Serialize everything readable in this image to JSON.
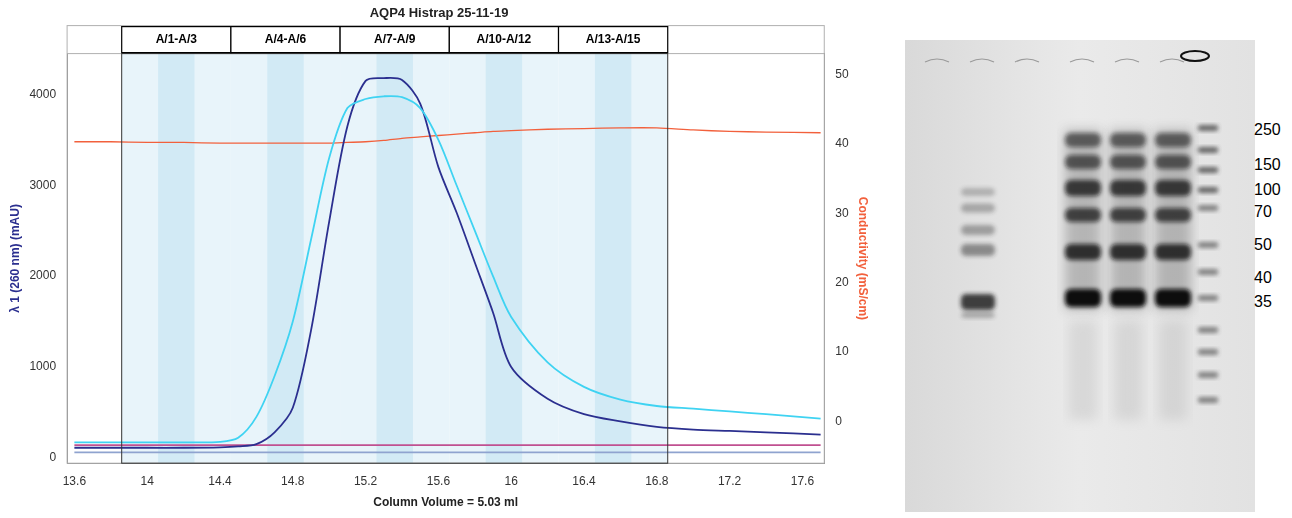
{
  "chart_data": {
    "type": "line",
    "title": "AQP4 Histrap 25-11-19",
    "x_label": "Column Volume = 5.03 ml",
    "y_label": "λ 1 (260 nm) (mAU)",
    "y2_label": "Conductivity (mS/cm)",
    "xlim": [
      13.56,
      17.72
    ],
    "xticks": [
      13.6,
      14,
      14.4,
      14.8,
      15.2,
      15.6,
      16,
      16.4,
      16.8,
      17.2,
      17.6
    ],
    "ylim": [
      -60,
      4450
    ],
    "yticks": [
      0,
      1000,
      2000,
      3000,
      4000
    ],
    "y2lim": [
      -6,
      53
    ],
    "y2ticks": [
      0,
      10,
      20,
      30,
      40,
      50
    ],
    "grid": false,
    "fractions": [
      {
        "label": "A/1-A/3",
        "start": 13.86,
        "end": 14.46
      },
      {
        "label": "A/4-A/6",
        "start": 14.46,
        "end": 15.06
      },
      {
        "label": "A/7-A/9",
        "start": 15.06,
        "end": 15.66
      },
      {
        "label": "A/10-A/12",
        "start": 15.66,
        "end": 16.26
      },
      {
        "label": "A/13-A/15",
        "start": 16.26,
        "end": 16.86
      }
    ],
    "x": [
      13.6,
      13.8,
      14.0,
      14.2,
      14.4,
      14.5,
      14.6,
      14.7,
      14.8,
      14.9,
      15.0,
      15.1,
      15.2,
      15.3,
      15.4,
      15.5,
      15.6,
      15.7,
      15.8,
      15.9,
      16.0,
      16.2,
      16.4,
      16.6,
      16.8,
      17.0,
      17.2,
      17.4,
      17.7
    ],
    "series": [
      {
        "color": "#3fd3f2",
        "axis": "y",
        "values": [
          170,
          170,
          170,
          170,
          175,
          220,
          450,
          900,
          1500,
          2400,
          3300,
          3850,
          3950,
          3980,
          3970,
          3850,
          3500,
          3000,
          2500,
          2000,
          1550,
          1050,
          780,
          640,
          570,
          540,
          510,
          480,
          430
        ]
      },
      {
        "color": "#2b2f8f",
        "axis": "y",
        "values": [
          110,
          110,
          110,
          110,
          115,
          125,
          150,
          280,
          550,
          1400,
          2600,
          3650,
          4150,
          4180,
          4160,
          3900,
          3200,
          2700,
          2150,
          1600,
          1000,
          650,
          480,
          400,
          340,
          310,
          295,
          280,
          255
        ]
      },
      {
        "color": "#c05090",
        "axis": "y",
        "values": [
          140,
          140,
          140,
          140,
          140,
          140,
          140,
          140,
          140,
          140,
          140,
          140,
          140,
          140,
          140,
          140,
          140,
          140,
          140,
          140,
          140,
          140,
          140,
          140,
          140,
          140,
          140,
          140,
          140
        ]
      },
      {
        "color": "#8fa3cf",
        "axis": "y",
        "values": [
          60,
          60,
          60,
          60,
          60,
          60,
          60,
          60,
          60,
          60,
          60,
          60,
          60,
          60,
          60,
          60,
          60,
          60,
          60,
          60,
          60,
          60,
          60,
          60,
          60,
          60,
          60,
          60,
          60
        ]
      },
      {
        "color": "#f2603c",
        "axis": "y2",
        "values": [
          40.3,
          40.3,
          40.2,
          40.2,
          40.1,
          40.1,
          40.1,
          40.1,
          40.1,
          40.1,
          40.1,
          40.2,
          40.3,
          40.5,
          40.8,
          41.0,
          41.2,
          41.4,
          41.6,
          41.8,
          41.9,
          42.1,
          42.2,
          42.3,
          42.3,
          42.0,
          41.8,
          41.7,
          41.6
        ]
      }
    ]
  },
  "gel": {
    "marker_labels": [
      250,
      150,
      100,
      70,
      50,
      40,
      35
    ]
  }
}
